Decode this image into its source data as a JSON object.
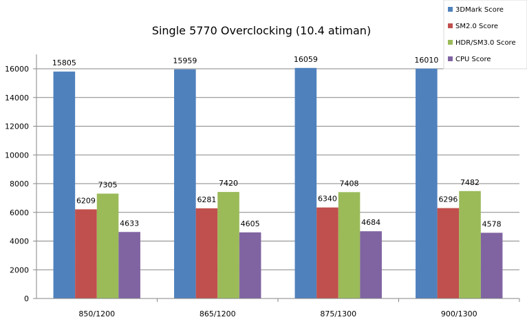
{
  "chart_data": {
    "type": "bar",
    "title": "Single 5770 Overclocking (10.4 atiman)",
    "xlabel": "",
    "ylabel": "",
    "categories": [
      "850/1200",
      "865/1200",
      "875/1300",
      "900/1300"
    ],
    "series": [
      {
        "name": "3DMark Score",
        "color": "#4F81BD",
        "values": [
          15805,
          15959,
          16059,
          16010
        ]
      },
      {
        "name": "SM2.0 Score",
        "color": "#C0504D",
        "values": [
          6209,
          6281,
          6340,
          6296
        ]
      },
      {
        "name": "HDR/SM3.0 Score",
        "color": "#9BBB59",
        "values": [
          7305,
          7420,
          7408,
          7482
        ]
      },
      {
        "name": "CPU Score",
        "color": "#8064A2",
        "values": [
          4633,
          4605,
          4684,
          4578
        ]
      }
    ],
    "yticks": [
      0,
      2000,
      4000,
      6000,
      8000,
      10000,
      12000,
      14000,
      16000
    ],
    "ylim": [
      0,
      17000
    ],
    "grid": true,
    "legend": "top-right",
    "data_labels": true
  }
}
